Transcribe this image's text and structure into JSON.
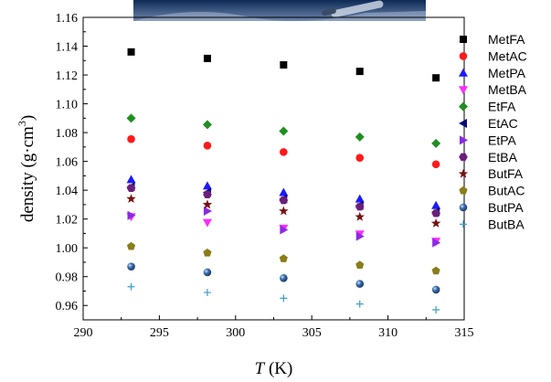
{
  "chart_data": {
    "type": "scatter",
    "xlabel_var": "T",
    "xlabel_unit": " (K)",
    "ylabel": "density (g·cm",
    "ylabel_sup": "3",
    "ylabel_close": ")",
    "xlim": [
      290,
      315
    ],
    "ylim": [
      0.95,
      1.16
    ],
    "xticks": [
      "290",
      "295",
      "300",
      "305",
      "310",
      "315"
    ],
    "yticks": [
      "0.96",
      "0.98",
      "1.00",
      "1.02",
      "1.04",
      "1.06",
      "1.08",
      "1.10",
      "1.12",
      "1.14",
      "1.16"
    ],
    "x": [
      293.15,
      298.15,
      303.15,
      308.15,
      313.15
    ],
    "legend_position": "right",
    "series": [
      {
        "name": "MetFA",
        "marker": "square",
        "color": "#000000",
        "values": [
          1.136,
          1.1315,
          1.127,
          1.1225,
          1.118
        ]
      },
      {
        "name": "MetAC",
        "marker": "circle",
        "color": "#ff1a1a",
        "values": [
          1.0755,
          1.071,
          1.0665,
          1.0625,
          1.058
        ]
      },
      {
        "name": "MetPA",
        "marker": "triangle-up",
        "color": "#1a1aff",
        "values": [
          1.0475,
          1.043,
          1.0385,
          1.034,
          1.0295
        ]
      },
      {
        "name": "MetBA",
        "marker": "triangle-down",
        "color": "#ff2aff",
        "values": [
          1.0215,
          1.0175,
          1.0135,
          1.0095,
          1.0045
        ]
      },
      {
        "name": "EtFA",
        "marker": "diamond",
        "color": "#1f8f1f",
        "values": [
          1.09,
          1.0855,
          1.081,
          1.077,
          1.0725
        ]
      },
      {
        "name": "EtAC",
        "marker": "triangle-left",
        "color": "#0a0a80",
        "values": [
          1.0425,
          1.0385,
          1.034,
          1.0295,
          1.025
        ]
      },
      {
        "name": "EtPA",
        "marker": "triangle-right",
        "color": "#8a2be2",
        "values": [
          1.0225,
          1.0255,
          1.0125,
          1.008,
          1.0035
        ]
      },
      {
        "name": "EtBA",
        "marker": "hexagon",
        "color": "#6b1f7a",
        "values": [
          1.0415,
          1.037,
          1.033,
          1.0285,
          1.024
        ]
      },
      {
        "name": "ButFA",
        "marker": "star",
        "color": "#7a1010",
        "values": [
          1.034,
          1.03,
          1.0255,
          1.0215,
          1.017
        ]
      },
      {
        "name": "ButAC",
        "marker": "pentagon",
        "color": "#8a7d1a",
        "values": [
          1.001,
          0.9965,
          0.9925,
          0.988,
          0.984
        ]
      },
      {
        "name": "ButPA",
        "marker": "sphere",
        "color": "#3a6fb0",
        "values": [
          0.987,
          0.983,
          0.979,
          0.975,
          0.971
        ]
      },
      {
        "name": "ButBA",
        "marker": "plus",
        "color": "#3aa0c0",
        "values": [
          0.973,
          0.969,
          0.965,
          0.961,
          0.957
        ]
      }
    ]
  }
}
